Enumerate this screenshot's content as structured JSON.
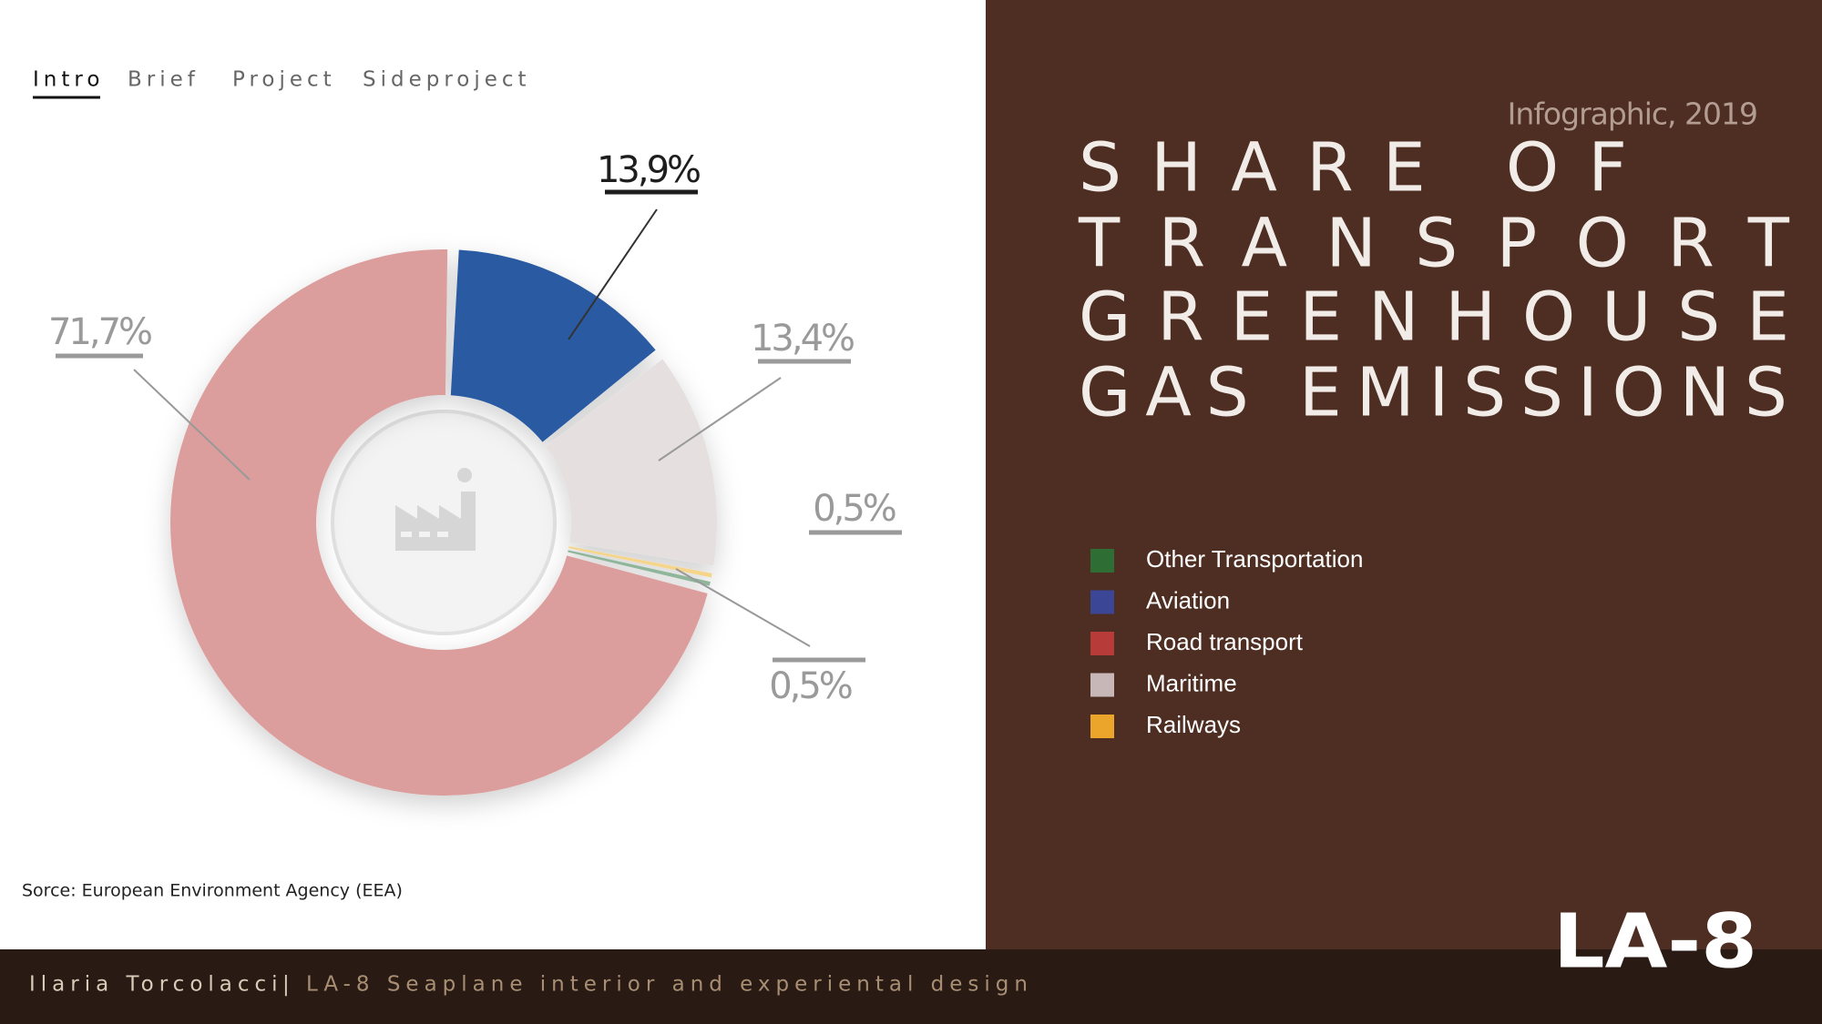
{
  "nav": {
    "items": [
      "Intro",
      "Brief",
      "Project",
      "Sideproject"
    ]
  },
  "header": {
    "subtitle": "Infographic, 2019",
    "title_lines": [
      "SHARE OF",
      "TRANSPORT",
      "GREENHOUSE",
      "GAS EMISSIONS"
    ]
  },
  "chart_data": {
    "type": "pie",
    "categories": [
      "Other Transportation",
      "Aviation",
      "Road transport",
      "Maritime",
      "Railways"
    ],
    "values": [
      0.5,
      13.9,
      71.7,
      13.4,
      0.5
    ],
    "value_labels": [
      "0,5%",
      "13,9%",
      "71,7%",
      "13,4%",
      "0,5%"
    ],
    "colors": [
      "#8fb59a",
      "#2a5aa2",
      "#db9e9c",
      "#e6dfdf",
      "#f5d58c"
    ],
    "legend_colors": [
      "#2e6e35",
      "#3b4696",
      "#b73c39",
      "#c7b7b7",
      "#eba52b"
    ]
  },
  "source": "Sorce: European Environment Agency (EEA)",
  "footer": {
    "author": "Ilaria Torcolacci",
    "separator": "|",
    "project": "LA-8 Seaplane interior and experiental design",
    "logo": "LA-8"
  }
}
